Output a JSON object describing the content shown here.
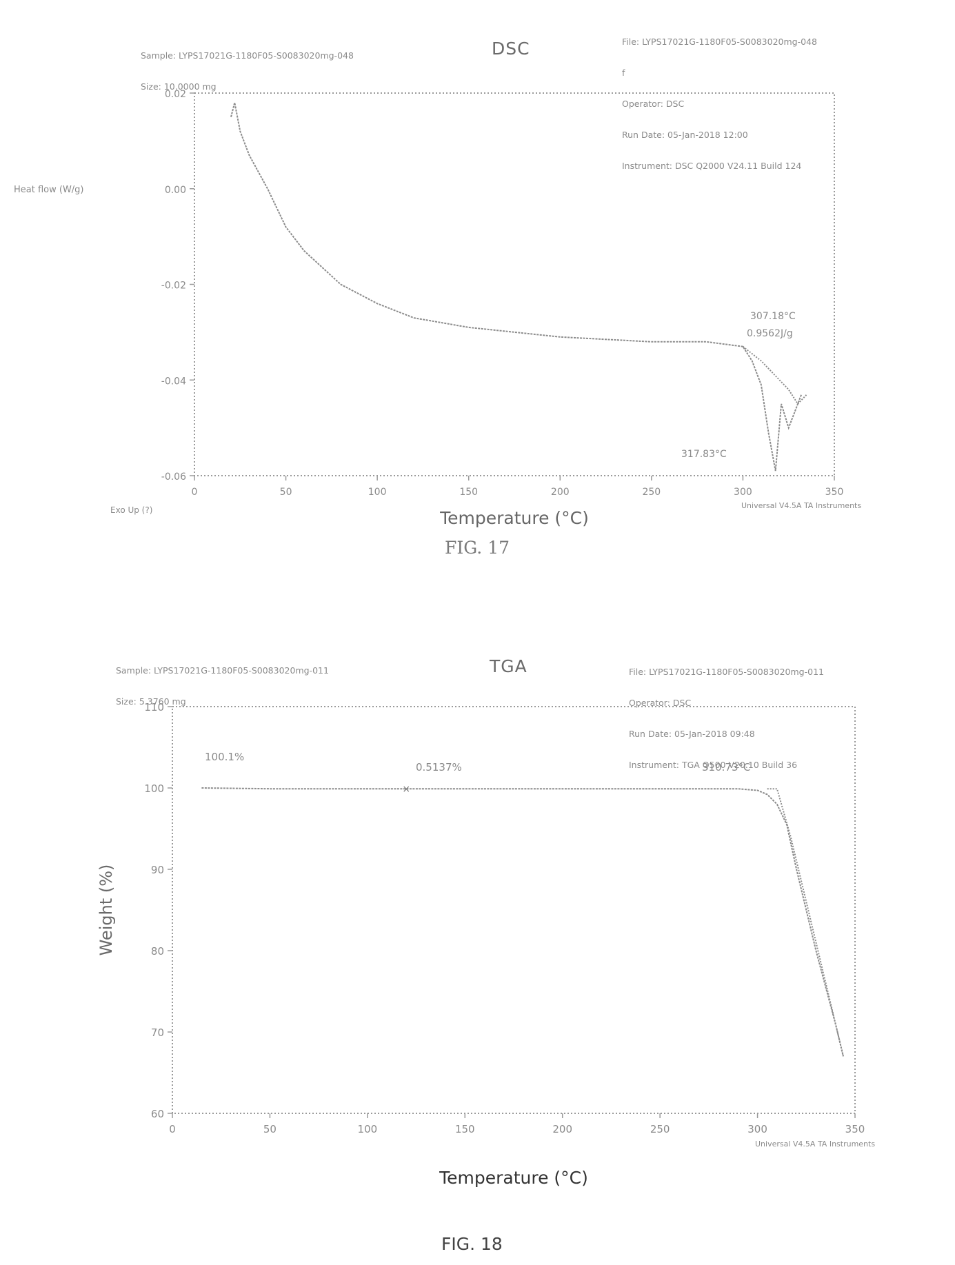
{
  "dsc": {
    "title": "DSC",
    "header_left": [
      "Sample: LYPS17021G-1180F05-S0083020mg-048",
      "Size: 10.0000 mg"
    ],
    "header_right": [
      "File: LYPS17021G-1180F05-S0083020mg-048",
      "f",
      "Operator: DSC",
      "Run Date: 05-Jan-2018 12:00",
      "Instrument: DSC Q2000 V24.11 Build 124"
    ],
    "caption": "FIG. 17",
    "exo_label": "Exo Up (?)",
    "universal_label": "Universal V4.5A TA Instruments"
  },
  "tga": {
    "title": "TGA",
    "header_left": [
      "Sample: LYPS17021G-1180F05-S0083020mg-011",
      "Size: 5.3760 mg"
    ],
    "header_right": [
      "File: LYPS17021G-1180F05-S0083020mg-011",
      "Operator: DSC",
      "Run Date: 05-Jan-2018 09:48",
      "Instrument: TGA Q500 V20.10 Build 36"
    ],
    "caption": "FIG. 18",
    "universal_label": "Universal V4.5A TA Instruments"
  },
  "chart_data": [
    {
      "type": "line",
      "title": "DSC",
      "xlabel": "Temperature (°C)",
      "ylabel": "Heat flow (W/g)",
      "xlim": [
        0,
        350
      ],
      "ylim": [
        -0.06,
        0.02
      ],
      "xticks": [
        "0",
        "50",
        "100",
        "150",
        "200",
        "250",
        "300",
        "350"
      ],
      "yticks": [
        "-0.06",
        "-0.04",
        "-0.02",
        "0.00",
        "0.02"
      ],
      "grid": false,
      "series": [
        {
          "x": [
            20,
            22,
            25,
            30,
            40,
            50,
            60,
            80,
            100,
            120,
            150,
            200,
            250,
            280,
            300,
            305,
            310,
            314,
            317.83,
            321,
            325,
            328,
            332
          ],
          "y": [
            0.015,
            0.018,
            0.012,
            0.007,
            0.0,
            -0.008,
            -0.013,
            -0.02,
            -0.024,
            -0.027,
            -0.029,
            -0.031,
            -0.032,
            -0.032,
            -0.033,
            -0.036,
            -0.041,
            -0.051,
            -0.059,
            -0.045,
            -0.05,
            -0.047,
            -0.043
          ]
        },
        {
          "x": [
            300,
            310,
            320,
            325,
            330,
            335
          ],
          "y": [
            -0.033,
            -0.036,
            -0.04,
            -0.042,
            -0.045,
            -0.043
          ]
        }
      ],
      "annotations": [
        {
          "text": "307.18°C",
          "x": 307.18,
          "y": -0.033
        },
        {
          "text": "0.9562J/g",
          "x": 307.18,
          "y": -0.033
        },
        {
          "text": "317.83°C",
          "x": 317.83,
          "y": -0.059
        }
      ]
    },
    {
      "type": "line",
      "title": "TGA",
      "xlabel": "Temperature (°C)",
      "ylabel": "Weight (%)",
      "xlim": [
        0,
        350
      ],
      "ylim": [
        60,
        110
      ],
      "xticks": [
        "0",
        "50",
        "100",
        "150",
        "200",
        "250",
        "300",
        "350"
      ],
      "yticks": [
        "60",
        "70",
        "80",
        "90",
        "100",
        "110"
      ],
      "grid": false,
      "series": [
        {
          "x": [
            15,
            50,
            120,
            200,
            270,
            290,
            300,
            305,
            310,
            315,
            320,
            330,
            340,
            344
          ],
          "y": [
            100.0,
            99.9,
            99.9,
            99.9,
            99.9,
            99.9,
            99.7,
            99.2,
            98.0,
            95.5,
            90.0,
            80.0,
            71.0,
            67.0
          ]
        },
        {
          "x": [
            305,
            310,
            317,
            335,
            344
          ],
          "y": [
            99.9,
            99.9,
            94.0,
            76.0,
            67.0
          ]
        }
      ],
      "annotations": [
        {
          "text": "100.1%",
          "x": 15,
          "y": 100.0
        },
        {
          "text": "0.5137%",
          "x": 120,
          "y": 99.9
        },
        {
          "text": "310.73°C",
          "x": 310.73,
          "y": 99.9
        }
      ]
    }
  ]
}
